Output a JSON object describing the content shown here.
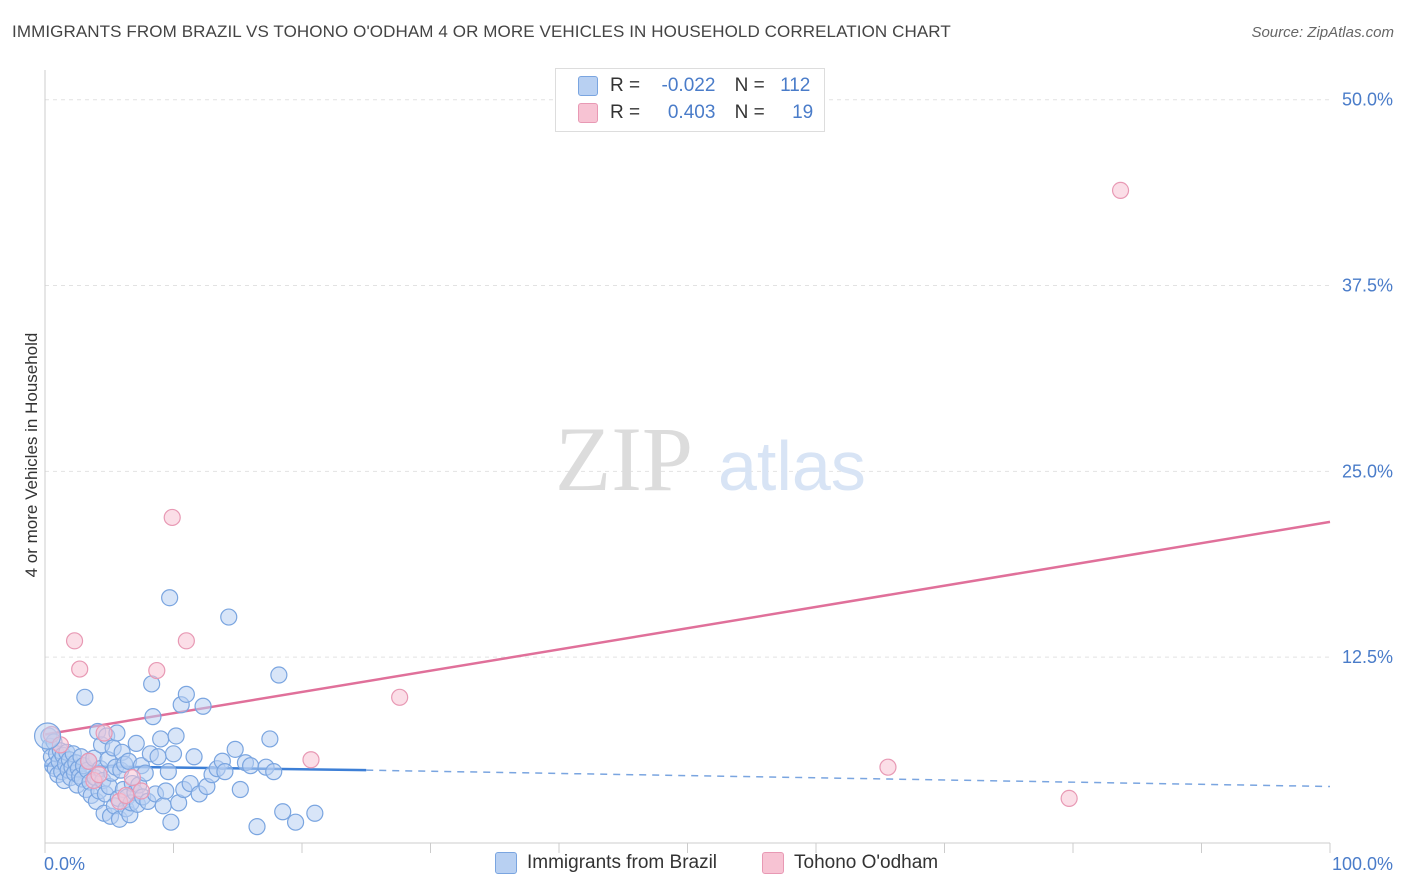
{
  "title": "IMMIGRANTS FROM BRAZIL VS TOHONO O'ODHAM 4 OR MORE VEHICLES IN HOUSEHOLD CORRELATION CHART",
  "source": "Source: ZipAtlas.com",
  "watermark": {
    "zip": "ZIP",
    "atlas": "atlas"
  },
  "legend": {
    "rows": [
      {
        "r_label": "R =",
        "r_value": "-0.022",
        "n_label": "N =",
        "n_value": "112",
        "color": "#b8d0f2",
        "border": "#7aa5e0"
      },
      {
        "r_label": "R =",
        "r_value": "0.403",
        "n_label": "N =",
        "n_value": "19",
        "color": "#f7c3d3",
        "border": "#e899b4"
      }
    ]
  },
  "bottom_legend": [
    {
      "label": "Immigrants from Brazil",
      "color": "#b8d0f2",
      "border": "#7aa5e0"
    },
    {
      "label": "Tohono O'odham",
      "color": "#f7c3d3",
      "border": "#e899b4"
    }
  ],
  "chart_data": {
    "type": "scatter",
    "title": "IMMIGRANTS FROM BRAZIL VS TOHONO O'ODHAM 4 OR MORE VEHICLES IN HOUSEHOLD CORRELATION CHART",
    "xlabel": "",
    "ylabel": "4 or more Vehicles in Household",
    "xlim": [
      0,
      100
    ],
    "ylim": [
      0,
      52
    ],
    "x_ticks": [
      "0.0%",
      "100.0%"
    ],
    "y_ticks": [
      {
        "value": 12.5,
        "label": "12.5%"
      },
      {
        "value": 25.0,
        "label": "25.0%"
      },
      {
        "value": 37.5,
        "label": "37.5%"
      },
      {
        "value": 50.0,
        "label": "50.0%"
      }
    ],
    "series": [
      {
        "name": "Immigrants from Brazil",
        "color": "#7aa5e0",
        "fill": "#b8d0f2",
        "trend": {
          "x0": 0,
          "y0": 5.2,
          "x1": 25,
          "y1": 4.9,
          "dash_x1": 100,
          "dash_y1": 3.8
        },
        "points": [
          [
            0.3,
            7.2
          ],
          [
            0.4,
            6.5
          ],
          [
            0.5,
            5.8
          ],
          [
            0.6,
            5.2
          ],
          [
            0.7,
            6.8
          ],
          [
            0.8,
            5.0
          ],
          [
            0.9,
            6.0
          ],
          [
            1.0,
            4.6
          ],
          [
            1.1,
            5.5
          ],
          [
            1.2,
            6.2
          ],
          [
            1.3,
            4.8
          ],
          [
            1.4,
            5.9
          ],
          [
            1.5,
            4.2
          ],
          [
            1.6,
            5.3
          ],
          [
            1.7,
            6.1
          ],
          [
            1.8,
            4.9
          ],
          [
            1.9,
            5.6
          ],
          [
            2.0,
            4.4
          ],
          [
            2.1,
            5.1
          ],
          [
            2.2,
            6.0
          ],
          [
            2.3,
            4.7
          ],
          [
            2.4,
            5.4
          ],
          [
            2.5,
            3.9
          ],
          [
            2.6,
            5.0
          ],
          [
            2.7,
            4.5
          ],
          [
            2.8,
            5.8
          ],
          [
            2.9,
            4.3
          ],
          [
            3.0,
            5.2
          ],
          [
            3.1,
            9.8
          ],
          [
            3.2,
            3.6
          ],
          [
            3.3,
            4.9
          ],
          [
            3.4,
            5.5
          ],
          [
            3.5,
            4.1
          ],
          [
            3.6,
            3.2
          ],
          [
            3.8,
            5.7
          ],
          [
            3.9,
            4.4
          ],
          [
            4.0,
            2.8
          ],
          [
            4.1,
            7.5
          ],
          [
            4.2,
            3.5
          ],
          [
            4.3,
            5.0
          ],
          [
            4.4,
            6.6
          ],
          [
            4.5,
            4.2
          ],
          [
            4.6,
            2.0
          ],
          [
            4.7,
            3.3
          ],
          [
            4.8,
            7.2
          ],
          [
            4.9,
            5.6
          ],
          [
            5.0,
            3.8
          ],
          [
            5.1,
            1.8
          ],
          [
            5.2,
            4.7
          ],
          [
            5.3,
            6.4
          ],
          [
            5.4,
            2.5
          ],
          [
            5.5,
            5.1
          ],
          [
            5.6,
            7.4
          ],
          [
            5.7,
            3.0
          ],
          [
            5.8,
            1.6
          ],
          [
            5.9,
            4.9
          ],
          [
            6.0,
            6.1
          ],
          [
            6.1,
            3.6
          ],
          [
            6.2,
            5.3
          ],
          [
            6.3,
            2.3
          ],
          [
            6.4,
            3.1
          ],
          [
            6.5,
            5.5
          ],
          [
            6.6,
            1.9
          ],
          [
            6.7,
            2.7
          ],
          [
            6.8,
            4.0
          ],
          [
            7.0,
            3.4
          ],
          [
            7.1,
            6.7
          ],
          [
            7.2,
            2.6
          ],
          [
            7.3,
            3.9
          ],
          [
            7.5,
            5.2
          ],
          [
            7.6,
            3.1
          ],
          [
            7.8,
            4.7
          ],
          [
            8.0,
            2.8
          ],
          [
            8.2,
            6.0
          ],
          [
            8.3,
            10.7
          ],
          [
            8.4,
            8.5
          ],
          [
            8.6,
            3.3
          ],
          [
            8.8,
            5.8
          ],
          [
            9.0,
            7.0
          ],
          [
            9.2,
            2.5
          ],
          [
            9.4,
            3.5
          ],
          [
            9.6,
            4.8
          ],
          [
            9.7,
            16.5
          ],
          [
            9.8,
            1.4
          ],
          [
            10.0,
            6.0
          ],
          [
            10.2,
            7.2
          ],
          [
            10.4,
            2.7
          ],
          [
            10.6,
            9.3
          ],
          [
            10.8,
            3.6
          ],
          [
            11.0,
            10.0
          ],
          [
            11.3,
            4.0
          ],
          [
            11.6,
            5.8
          ],
          [
            12.0,
            3.3
          ],
          [
            12.3,
            9.2
          ],
          [
            12.6,
            3.8
          ],
          [
            13.0,
            4.6
          ],
          [
            13.4,
            5.0
          ],
          [
            13.8,
            5.5
          ],
          [
            14.0,
            4.8
          ],
          [
            14.3,
            15.2
          ],
          [
            14.8,
            6.3
          ],
          [
            15.2,
            3.6
          ],
          [
            15.6,
            5.4
          ],
          [
            16.0,
            5.2
          ],
          [
            16.5,
            1.1
          ],
          [
            17.2,
            5.1
          ],
          [
            17.5,
            7.0
          ],
          [
            17.8,
            4.8
          ],
          [
            18.2,
            11.3
          ],
          [
            18.5,
            2.1
          ],
          [
            19.5,
            1.4
          ],
          [
            21.0,
            2.0
          ]
        ]
      },
      {
        "name": "Tohono O'odham",
        "color": "#e899b4",
        "fill": "#f7c3d3",
        "trend": {
          "x0": 0,
          "y0": 7.3,
          "x1": 100,
          "y1": 21.6
        },
        "points": [
          [
            0.5,
            7.3
          ],
          [
            1.2,
            6.6
          ],
          [
            2.3,
            13.6
          ],
          [
            2.7,
            11.7
          ],
          [
            3.4,
            5.5
          ],
          [
            3.8,
            4.2
          ],
          [
            4.2,
            4.6
          ],
          [
            4.6,
            7.4
          ],
          [
            5.8,
            2.8
          ],
          [
            6.3,
            3.2
          ],
          [
            6.8,
            4.4
          ],
          [
            7.5,
            3.5
          ],
          [
            8.7,
            11.6
          ],
          [
            9.9,
            21.9
          ],
          [
            11.0,
            13.6
          ],
          [
            20.7,
            5.6
          ],
          [
            27.6,
            9.8
          ],
          [
            65.6,
            5.1
          ],
          [
            79.7,
            3.0
          ]
        ]
      }
    ],
    "extra_point": {
      "series": "Tohono O'odham",
      "x": 83.7,
      "y": 43.9
    }
  }
}
